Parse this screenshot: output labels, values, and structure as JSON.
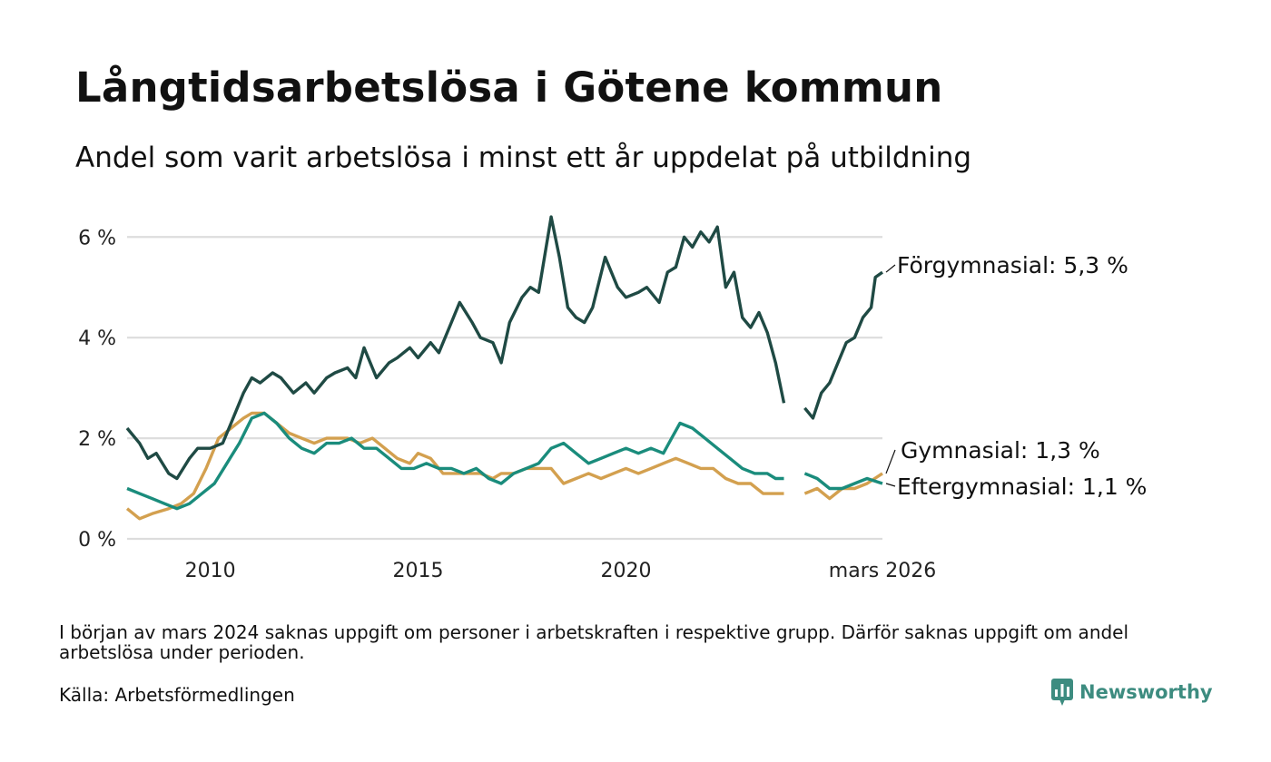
{
  "title": "Långtidsarbetslösa i Götene kommun",
  "subtitle": "Andel som varit arbetslösa i minst ett år uppdelat på utbildning",
  "note": "I början av mars 2024 saknas uppgift om personer i arbetskraften i respektive grupp. Därför saknas uppgift om andel arbetslösa under perioden.",
  "source": "Källa: Arbetsförmedlingen",
  "brand": "Newsworthy",
  "chart_data": {
    "type": "line",
    "title": "Långtidsarbetslösa i Götene kommun",
    "subtitle": "Andel som varit arbetslösa i minst ett år uppdelat på utbildning",
    "xlabel": "",
    "ylabel": "",
    "x_unit": "year",
    "xlim": [
      2008.0,
      2026.17
    ],
    "ylim": [
      0,
      6.6
    ],
    "grid": true,
    "y_ticks": [
      0,
      2,
      4,
      6
    ],
    "y_tick_labels": [
      "0 %",
      "2 %",
      "4 %",
      "6 %"
    ],
    "x_ticks": [
      2010,
      2015,
      2020,
      2026.17
    ],
    "x_tick_labels": [
      "2010",
      "2015",
      "2020",
      "mars 2026"
    ],
    "gap": [
      2023.9,
      2024.3
    ],
    "series": [
      {
        "name": "Förgymnasial",
        "end_label": "Förgymnasial: 5,3 %",
        "color": "#1f4a44",
        "x": [
          2008.0,
          2008.3,
          2008.5,
          2008.7,
          2009.0,
          2009.2,
          2009.5,
          2009.7,
          2010.0,
          2010.3,
          2010.5,
          2010.8,
          2011.0,
          2011.2,
          2011.5,
          2011.7,
          2012.0,
          2012.3,
          2012.5,
          2012.8,
          2013.0,
          2013.3,
          2013.5,
          2013.7,
          2014.0,
          2014.3,
          2014.5,
          2014.8,
          2015.0,
          2015.3,
          2015.5,
          2015.8,
          2016.0,
          2016.3,
          2016.5,
          2016.8,
          2017.0,
          2017.2,
          2017.5,
          2017.7,
          2017.9,
          2018.2,
          2018.4,
          2018.6,
          2018.8,
          2019.0,
          2019.2,
          2019.5,
          2019.8,
          2020.0,
          2020.3,
          2020.5,
          2020.8,
          2021.0,
          2021.2,
          2021.4,
          2021.6,
          2021.8,
          2022.0,
          2022.2,
          2022.4,
          2022.6,
          2022.8,
          2023.0,
          2023.2,
          2023.4,
          2023.6,
          2023.8,
          2024.3,
          2024.5,
          2024.7,
          2024.9,
          2025.1,
          2025.3,
          2025.5,
          2025.7,
          2025.9,
          2026.0,
          2026.17
        ],
        "values": [
          2.2,
          1.9,
          1.6,
          1.7,
          1.3,
          1.2,
          1.6,
          1.8,
          1.8,
          1.9,
          2.3,
          2.9,
          3.2,
          3.1,
          3.3,
          3.2,
          2.9,
          3.1,
          2.9,
          3.2,
          3.3,
          3.4,
          3.2,
          3.8,
          3.2,
          3.5,
          3.6,
          3.8,
          3.6,
          3.9,
          3.7,
          4.3,
          4.7,
          4.3,
          4.0,
          3.9,
          3.5,
          4.3,
          4.8,
          5.0,
          4.9,
          6.4,
          5.6,
          4.6,
          4.4,
          4.3,
          4.6,
          5.6,
          5.0,
          4.8,
          4.9,
          5.0,
          4.7,
          5.3,
          5.4,
          6.0,
          5.8,
          6.1,
          5.9,
          6.2,
          5.0,
          5.3,
          4.4,
          4.2,
          4.5,
          4.1,
          3.5,
          2.7,
          2.6,
          2.4,
          2.9,
          3.1,
          3.5,
          3.9,
          4.0,
          4.4,
          4.6,
          5.2,
          5.3
        ]
      },
      {
        "name": "Gymnasial",
        "end_label": "Gymnasial: 1,3 %",
        "color": "#d3a04f",
        "x": [
          2008.0,
          2008.3,
          2008.6,
          2009.0,
          2009.3,
          2009.6,
          2009.9,
          2010.2,
          2010.5,
          2010.8,
          2011.0,
          2011.3,
          2011.6,
          2011.9,
          2012.2,
          2012.5,
          2012.8,
          2013.0,
          2013.3,
          2013.6,
          2013.9,
          2014.2,
          2014.5,
          2014.8,
          2015.0,
          2015.3,
          2015.6,
          2015.9,
          2016.2,
          2016.5,
          2016.8,
          2017.0,
          2017.3,
          2017.6,
          2017.9,
          2018.2,
          2018.5,
          2018.8,
          2019.1,
          2019.4,
          2019.7,
          2020.0,
          2020.3,
          2020.6,
          2020.9,
          2021.2,
          2021.5,
          2021.8,
          2022.1,
          2022.4,
          2022.7,
          2023.0,
          2023.3,
          2023.6,
          2023.8,
          2024.3,
          2024.6,
          2024.9,
          2025.2,
          2025.5,
          2025.8,
          2026.17
        ],
        "values": [
          0.6,
          0.4,
          0.5,
          0.6,
          0.7,
          0.9,
          1.4,
          2.0,
          2.2,
          2.4,
          2.5,
          2.5,
          2.3,
          2.1,
          2.0,
          1.9,
          2.0,
          2.0,
          2.0,
          1.9,
          2.0,
          1.8,
          1.6,
          1.5,
          1.7,
          1.6,
          1.3,
          1.3,
          1.3,
          1.3,
          1.2,
          1.3,
          1.3,
          1.4,
          1.4,
          1.4,
          1.1,
          1.2,
          1.3,
          1.2,
          1.3,
          1.4,
          1.3,
          1.4,
          1.5,
          1.6,
          1.5,
          1.4,
          1.4,
          1.2,
          1.1,
          1.1,
          0.9,
          0.9,
          0.9,
          0.9,
          1.0,
          0.8,
          1.0,
          1.0,
          1.1,
          1.3
        ]
      },
      {
        "name": "Eftergymnasial",
        "end_label": "Eftergymnasial: 1,1 %",
        "color": "#1a8c7c",
        "x": [
          2008.0,
          2008.3,
          2008.6,
          2008.9,
          2009.2,
          2009.5,
          2009.8,
          2010.1,
          2010.4,
          2010.7,
          2011.0,
          2011.3,
          2011.6,
          2011.9,
          2012.2,
          2012.5,
          2012.8,
          2013.1,
          2013.4,
          2013.7,
          2014.0,
          2014.3,
          2014.6,
          2014.9,
          2015.2,
          2015.5,
          2015.8,
          2016.1,
          2016.4,
          2016.7,
          2017.0,
          2017.3,
          2017.6,
          2017.9,
          2018.2,
          2018.5,
          2018.8,
          2019.1,
          2019.4,
          2019.7,
          2020.0,
          2020.3,
          2020.6,
          2020.9,
          2021.1,
          2021.3,
          2021.6,
          2021.9,
          2022.2,
          2022.5,
          2022.8,
          2023.1,
          2023.4,
          2023.6,
          2023.8,
          2024.3,
          2024.6,
          2024.9,
          2025.2,
          2025.5,
          2025.8,
          2026.17
        ],
        "values": [
          1.0,
          0.9,
          0.8,
          0.7,
          0.6,
          0.7,
          0.9,
          1.1,
          1.5,
          1.9,
          2.4,
          2.5,
          2.3,
          2.0,
          1.8,
          1.7,
          1.9,
          1.9,
          2.0,
          1.8,
          1.8,
          1.6,
          1.4,
          1.4,
          1.5,
          1.4,
          1.4,
          1.3,
          1.4,
          1.2,
          1.1,
          1.3,
          1.4,
          1.5,
          1.8,
          1.9,
          1.7,
          1.5,
          1.6,
          1.7,
          1.8,
          1.7,
          1.8,
          1.7,
          2.0,
          2.3,
          2.2,
          2.0,
          1.8,
          1.6,
          1.4,
          1.3,
          1.3,
          1.2,
          1.2,
          1.3,
          1.2,
          1.0,
          1.0,
          1.1,
          1.2,
          1.1
        ]
      }
    ]
  }
}
